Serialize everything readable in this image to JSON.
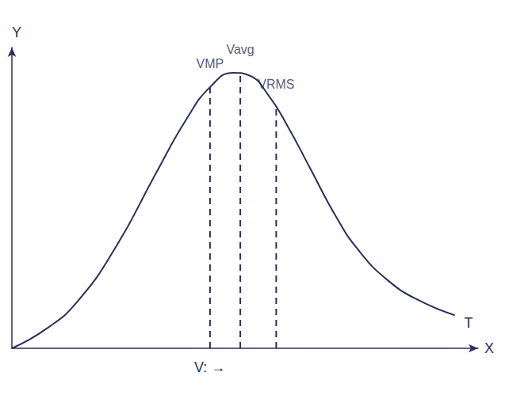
{
  "chart_data": {
    "type": "line",
    "x_label": "X",
    "y_label": "Y",
    "annotations": [
      "V: →"
    ],
    "xlim": [
      0,
      10
    ],
    "ylim": [
      0,
      10
    ],
    "xticks": [],
    "yticks": [],
    "tick_labels": false,
    "grid": false,
    "color": "#2a2f5a",
    "x": [
      0,
      0.75,
      1.42,
      2.25,
      3.08,
      3.75,
      4.25,
      4.75,
      5.08,
      5.5,
      5.92,
      6.42,
      6.92,
      7.42,
      8.08,
      8.75,
      9.5
    ],
    "series": [
      {
        "name": "T",
        "color": "#2a2f5a",
        "values": [
          0,
          0.66,
          1.58,
          3.42,
          5.79,
          7.63,
          8.68,
          9.16,
          9.08,
          8.42,
          7.37,
          5.92,
          4.47,
          3.29,
          2.24,
          1.58,
          1.1
        ]
      }
    ],
    "vlines": {
      "line_style": "dashed",
      "color": "#2a2f5a",
      "items": [
        {
          "label": "VMP",
          "x": 4.25,
          "y": 8.68
        },
        {
          "label": "Vavg",
          "x": 4.9,
          "y": 9.14
        },
        {
          "label": "VRMS",
          "x": 5.67,
          "y": 8.0
        }
      ]
    }
  }
}
